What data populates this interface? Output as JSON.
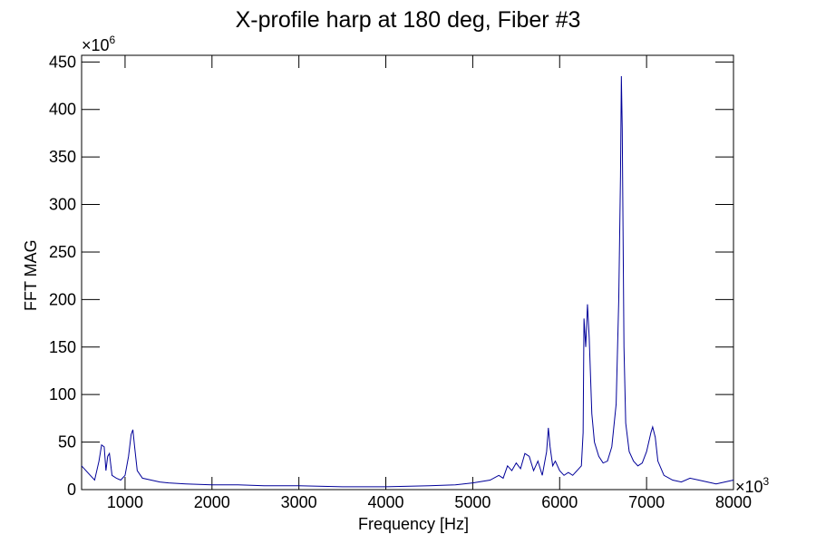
{
  "chart_data": {
    "type": "line",
    "title": "X-profile harp at 180 deg, Fiber #3",
    "x_label": "Frequency [Hz]",
    "y_label": "FFT MAG",
    "x_multiplier": {
      "base": "×10",
      "exp": "3"
    },
    "y_multiplier": {
      "base": "×10",
      "exp": "6"
    },
    "xlim": [
      500,
      8000
    ],
    "ylim": [
      0,
      457
    ],
    "xticks": [
      1000,
      2000,
      3000,
      4000,
      5000,
      6000,
      7000,
      8000
    ],
    "yticks": [
      0,
      50,
      100,
      150,
      200,
      250,
      300,
      350,
      400,
      450
    ],
    "series": [
      {
        "color": "#000099",
        "x": [
          500,
          550,
          600,
          650,
          700,
          730,
          760,
          780,
          800,
          820,
          850,
          900,
          950,
          1000,
          1040,
          1070,
          1090,
          1110,
          1140,
          1200,
          1300,
          1400,
          1500,
          1700,
          2000,
          2300,
          2600,
          3000,
          3500,
          4000,
          4500,
          4800,
          5000,
          5200,
          5300,
          5350,
          5400,
          5450,
          5500,
          5550,
          5600,
          5650,
          5700,
          5750,
          5800,
          5850,
          5870,
          5890,
          5920,
          5950,
          6000,
          6050,
          6100,
          6150,
          6200,
          6250,
          6270,
          6280,
          6300,
          6320,
          6340,
          6370,
          6400,
          6450,
          6500,
          6550,
          6600,
          6650,
          6680,
          6700,
          6710,
          6720,
          6740,
          6760,
          6800,
          6850,
          6900,
          6950,
          7000,
          7050,
          7070,
          7100,
          7130,
          7200,
          7300,
          7400,
          7500,
          7600,
          7700,
          7800,
          7900,
          8000
        ],
        "values": [
          25,
          20,
          15,
          10,
          30,
          47,
          45,
          20,
          35,
          38,
          15,
          12,
          10,
          15,
          35,
          58,
          63,
          45,
          20,
          12,
          10,
          8,
          7,
          6,
          5,
          5,
          4,
          4,
          3,
          3,
          4,
          5,
          7,
          10,
          15,
          12,
          25,
          20,
          28,
          22,
          38,
          35,
          20,
          30,
          15,
          40,
          65,
          45,
          25,
          30,
          20,
          15,
          18,
          15,
          20,
          25,
          60,
          180,
          150,
          195,
          160,
          80,
          50,
          35,
          28,
          30,
          45,
          90,
          200,
          330,
          435,
          380,
          150,
          70,
          40,
          30,
          25,
          28,
          40,
          60,
          66,
          55,
          30,
          15,
          10,
          8,
          12,
          10,
          8,
          6,
          8,
          10
        ]
      }
    ]
  }
}
